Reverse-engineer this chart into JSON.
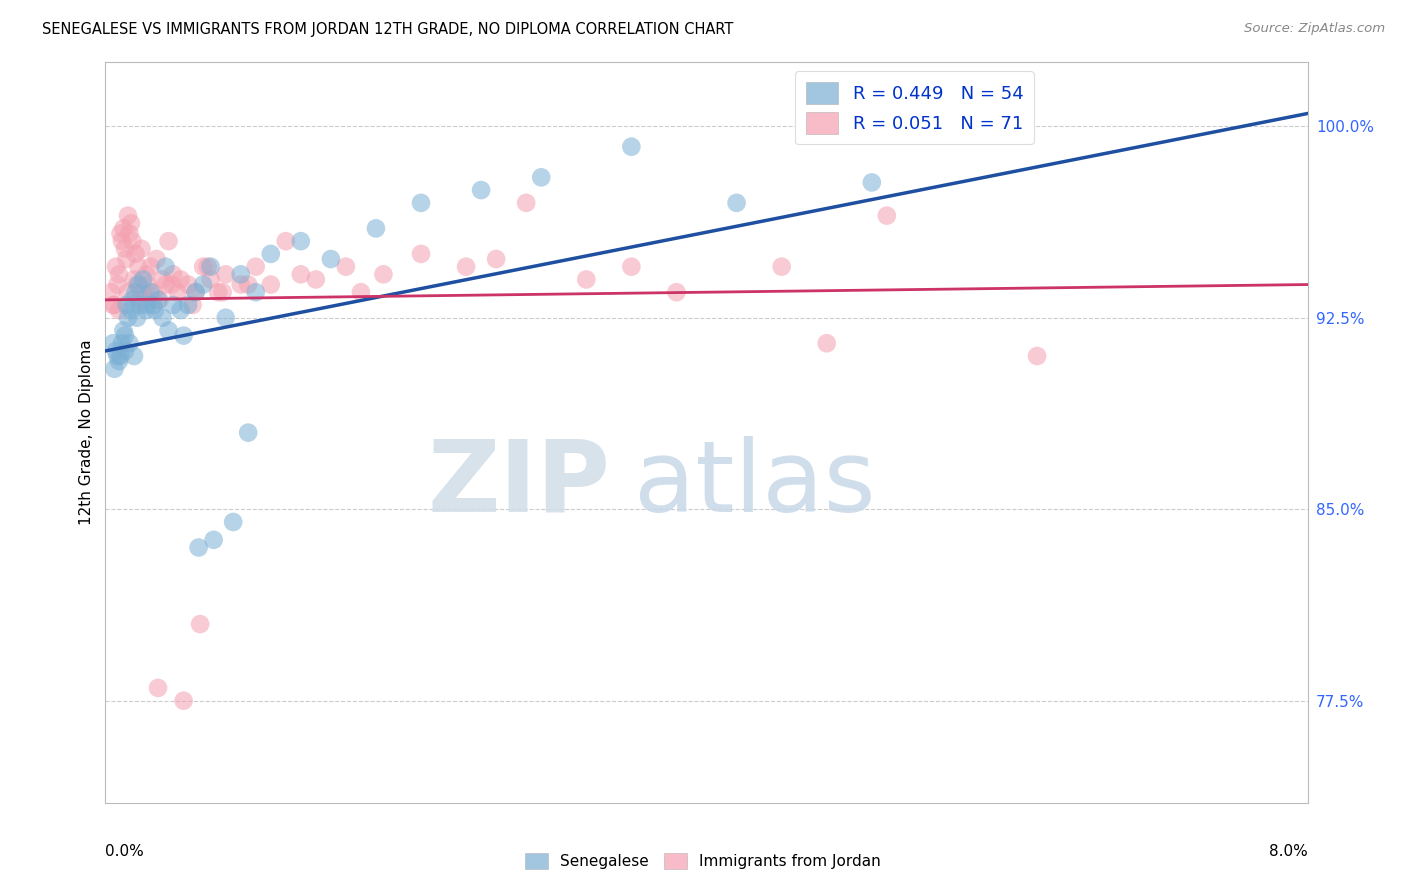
{
  "title": "SENEGALESE VS IMMIGRANTS FROM JORDAN 12TH GRADE, NO DIPLOMA CORRELATION CHART",
  "source": "Source: ZipAtlas.com",
  "ylabel": "12th Grade, No Diploma",
  "right_yticks": [
    77.5,
    85.0,
    92.5,
    100.0
  ],
  "right_ytick_labels": [
    "77.5%",
    "85.0%",
    "92.5%",
    "100.0%"
  ],
  "xmin": 0.0,
  "xmax": 8.0,
  "ymin": 73.5,
  "ymax": 102.5,
  "senegalese_color": "#7BAFD4",
  "jordan_color": "#F4A0B0",
  "legend_label1": "R = 0.449   N = 54",
  "legend_label2": "R = 0.051   N = 71",
  "legend_R_color": "#0033CC",
  "blue_line_color": "#1E4FA0",
  "pink_line_color": "#CC3366",
  "watermark_zip": "ZIP",
  "watermark_atlas": "atlas",
  "watermark_color": "#DDEEFF",
  "senegalese_x": [
    0.05,
    0.07,
    0.09,
    0.1,
    0.11,
    0.12,
    0.13,
    0.14,
    0.15,
    0.16,
    0.17,
    0.18,
    0.19,
    0.2,
    0.22,
    0.23,
    0.25,
    0.27,
    0.3,
    0.32,
    0.35,
    0.38,
    0.4,
    0.45,
    0.5,
    0.55,
    0.6,
    0.65,
    0.7,
    0.8,
    0.9,
    1.0,
    1.1,
    1.3,
    1.5,
    1.8,
    2.1,
    2.5,
    2.9,
    3.5,
    4.2,
    5.1,
    0.06,
    0.08,
    0.13,
    0.21,
    0.28,
    0.33,
    0.42,
    0.52,
    0.62,
    0.72,
    0.85,
    0.95
  ],
  "senegalese_y": [
    91.5,
    91.2,
    90.8,
    91.0,
    91.5,
    92.0,
    91.8,
    93.0,
    92.5,
    91.5,
    92.8,
    93.2,
    91.0,
    93.5,
    93.8,
    93.0,
    94.0,
    92.8,
    93.5,
    93.0,
    93.2,
    92.5,
    94.5,
    93.0,
    92.8,
    93.0,
    93.5,
    93.8,
    94.5,
    92.5,
    94.2,
    93.5,
    95.0,
    95.5,
    94.8,
    96.0,
    97.0,
    97.5,
    98.0,
    99.2,
    97.0,
    97.8,
    90.5,
    91.0,
    91.2,
    92.5,
    93.0,
    92.8,
    92.0,
    91.8,
    83.5,
    83.8,
    84.5,
    88.0
  ],
  "jordan_x": [
    0.04,
    0.06,
    0.07,
    0.08,
    0.09,
    0.1,
    0.11,
    0.12,
    0.13,
    0.14,
    0.15,
    0.16,
    0.17,
    0.18,
    0.19,
    0.2,
    0.21,
    0.22,
    0.23,
    0.24,
    0.25,
    0.27,
    0.28,
    0.3,
    0.32,
    0.34,
    0.36,
    0.38,
    0.4,
    0.42,
    0.45,
    0.48,
    0.5,
    0.55,
    0.6,
    0.65,
    0.7,
    0.75,
    0.8,
    0.9,
    1.0,
    1.1,
    1.2,
    1.4,
    1.6,
    1.85,
    2.1,
    2.4,
    2.8,
    3.2,
    3.8,
    4.5,
    5.2,
    6.2,
    0.05,
    0.09,
    0.15,
    0.26,
    0.44,
    0.58,
    0.68,
    0.78,
    0.95,
    1.3,
    1.7,
    2.6,
    3.5,
    4.8,
    0.35,
    0.52,
    0.63
  ],
  "jordan_y": [
    93.5,
    93.0,
    94.5,
    93.8,
    94.2,
    95.8,
    95.5,
    96.0,
    95.2,
    94.8,
    96.5,
    95.8,
    96.2,
    95.5,
    94.0,
    95.0,
    93.8,
    94.5,
    93.2,
    95.2,
    93.5,
    94.2,
    93.8,
    94.5,
    93.5,
    94.8,
    93.2,
    94.0,
    93.8,
    95.5,
    94.2,
    93.5,
    94.0,
    93.8,
    93.5,
    94.5,
    94.0,
    93.5,
    94.2,
    93.8,
    94.5,
    93.8,
    95.5,
    94.0,
    94.5,
    94.2,
    95.0,
    94.5,
    97.0,
    94.0,
    93.5,
    94.5,
    96.5,
    91.0,
    93.0,
    92.8,
    93.5,
    93.2,
    93.8,
    93.0,
    94.5,
    93.5,
    93.8,
    94.2,
    93.5,
    94.8,
    94.5,
    91.5,
    78.0,
    77.5,
    80.5
  ],
  "blue_line_x0": 0.0,
  "blue_line_y0": 91.2,
  "blue_line_x1": 8.0,
  "blue_line_y1": 100.5,
  "pink_line_x0": 0.0,
  "pink_line_y0": 93.2,
  "pink_line_x1": 8.0,
  "pink_line_y1": 93.8
}
